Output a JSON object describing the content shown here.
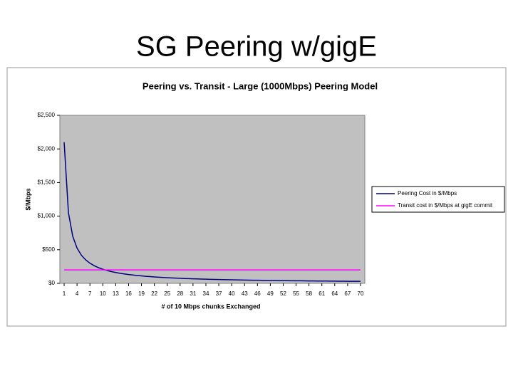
{
  "slide_title": "SG Peering w/gigE",
  "chart_data": {
    "type": "line",
    "title": "Peering vs. Transit - Large (1000Mbps) Peering Model",
    "x_label": "# of 10 Mbps chunks Exchanged",
    "y_label": "$/Mbps",
    "x": [
      1,
      2,
      3,
      4,
      5,
      6,
      7,
      8,
      9,
      10,
      11,
      12,
      13,
      14,
      15,
      16,
      17,
      18,
      19,
      20,
      21,
      22,
      23,
      24,
      25,
      26,
      27,
      28,
      29,
      30,
      31,
      32,
      33,
      34,
      35,
      36,
      37,
      38,
      39,
      40,
      41,
      42,
      43,
      44,
      45,
      46,
      47,
      48,
      49,
      50,
      51,
      52,
      53,
      54,
      55,
      56,
      57,
      58,
      59,
      60,
      61,
      62,
      63,
      64,
      65,
      66,
      67,
      68,
      69,
      70
    ],
    "series": [
      {
        "name": "Peering Cost in $/Mbps",
        "color": "#000080",
        "values": [
          2100,
          1050,
          700,
          525,
          420,
          350,
          300,
          263,
          233,
          210,
          191,
          175,
          162,
          150,
          140,
          131,
          124,
          117,
          111,
          105,
          100,
          95,
          91,
          88,
          84,
          81,
          78,
          75,
          72,
          70,
          68,
          66,
          64,
          62,
          60,
          58,
          57,
          55,
          54,
          53,
          51,
          50,
          49,
          48,
          47,
          46,
          45,
          44,
          43,
          42,
          41,
          40,
          40,
          39,
          38,
          38,
          37,
          36,
          36,
          35,
          34,
          34,
          33,
          33,
          32,
          32,
          31,
          31,
          30,
          30
        ]
      },
      {
        "name": "Transit cost in $/Mbps at gigE commit",
        "color": "#ff00ff",
        "values": [
          200,
          200,
          200,
          200,
          200,
          200,
          200,
          200,
          200,
          200,
          200,
          200,
          200,
          200,
          200,
          200,
          200,
          200,
          200,
          200,
          200,
          200,
          200,
          200,
          200,
          200,
          200,
          200,
          200,
          200,
          200,
          200,
          200,
          200,
          200,
          200,
          200,
          200,
          200,
          200,
          200,
          200,
          200,
          200,
          200,
          200,
          200,
          200,
          200,
          200,
          200,
          200,
          200,
          200,
          200,
          200,
          200,
          200,
          200,
          200,
          200,
          200,
          200,
          200,
          200,
          200,
          200,
          200,
          200,
          200
        ]
      }
    ],
    "xlim": [
      0,
      71
    ],
    "xticks": [
      1,
      4,
      7,
      10,
      13,
      16,
      19,
      22,
      25,
      28,
      31,
      34,
      37,
      40,
      43,
      46,
      49,
      52,
      55,
      58,
      61,
      64,
      67,
      70
    ],
    "ylim": [
      0,
      2500
    ],
    "yticks": [
      {
        "value": 0,
        "label": "$0"
      },
      {
        "value": 500,
        "label": "$500"
      },
      {
        "value": 1000,
        "label": "$1,000"
      },
      {
        "value": 1500,
        "label": "$1,500"
      },
      {
        "value": 2000,
        "label": "$2,000"
      },
      {
        "value": 2500,
        "label": "$2,500"
      }
    ],
    "grid": false,
    "plot_background": "#c0c0c0",
    "legend": "right"
  }
}
